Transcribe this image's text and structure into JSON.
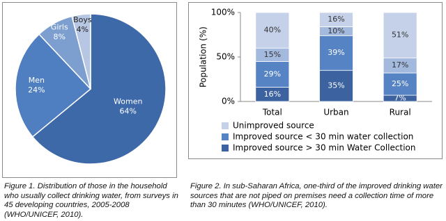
{
  "chart_data": [
    {
      "type": "pie",
      "categories": [
        "Women",
        "Men",
        "Girls",
        "Boys"
      ],
      "values": [
        64,
        24,
        8,
        4
      ],
      "value_labels": [
        "64%",
        "24%",
        "8%",
        "4%"
      ],
      "colors": [
        "#3e69a9",
        "#4f7fc0",
        "#7d9fd0",
        "#b7c7e3"
      ],
      "caption": "Figure 1. Distribution of those in the household who usually collect drinking water, from surveys in 45 developing countries, 2005-2008 (WHO/UNICEF, 2010)."
    },
    {
      "type": "stacked_bar",
      "ylabel": "Population (%)",
      "categories": [
        "Total",
        "Urban",
        "Rural"
      ],
      "ylim": [
        0,
        100
      ],
      "yticks": [
        {
          "value": 0,
          "label": "0%"
        },
        {
          "value": 50,
          "label": "50%"
        },
        {
          "value": 100,
          "label": "100%"
        }
      ],
      "series": [
        {
          "name": "Improved source > 30 min Water Collection",
          "color": "#3c63a0",
          "values": [
            16,
            35,
            7
          ],
          "value_labels": [
            "16%",
            "35%",
            "7%"
          ]
        },
        {
          "name": "Improved source < 30 min water collection",
          "color": "#5683c3",
          "values": [
            29,
            39,
            25
          ],
          "value_labels": [
            "29%",
            "39%",
            "25%"
          ]
        },
        {
          "color": "#a3b9dd",
          "values": [
            15,
            10,
            17
          ],
          "value_labels": [
            "15%",
            "10%",
            "17%"
          ]
        },
        {
          "name": "Unimproved source",
          "color": "#c4d1e9",
          "values": [
            40,
            16,
            51
          ],
          "value_labels": [
            "40%",
            "16%",
            "51%"
          ]
        }
      ],
      "caption": "Figure 2. In sub-Saharan Africa, one-third of the improved drinking water sources that are not piped on premises need a collection time of more than 30 minutes (WHO/UNICEF, 2010)."
    }
  ]
}
